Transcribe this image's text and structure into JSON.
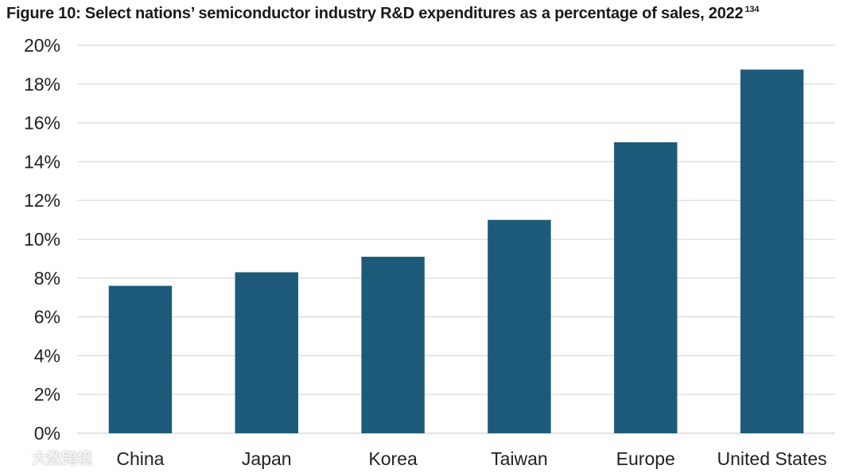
{
  "title": {
    "text": "Figure 10: Select nations’ semiconductor industry R&D expenditures as a percentage of sales, 2022",
    "footnote": "134"
  },
  "watermark": {
    "text": "大数跨境"
  },
  "chart_data": {
    "type": "bar",
    "title": "Figure 10: Select nations’ semiconductor industry R&D expenditures as a percentage of sales, 2022",
    "categories": [
      "China",
      "Japan",
      "Korea",
      "Taiwan",
      "Europe",
      "United States"
    ],
    "values": [
      7.6,
      8.3,
      9.1,
      11.0,
      15.0,
      18.75
    ],
    "y_unit": "%",
    "ylim": [
      0,
      20
    ],
    "y_ticks": [
      0,
      2,
      4,
      6,
      8,
      10,
      12,
      14,
      16,
      18,
      20
    ],
    "y_tick_labels": [
      "0%",
      "2%",
      "4%",
      "6%",
      "8%",
      "10%",
      "12%",
      "14%",
      "16%",
      "18%",
      "20%"
    ],
    "xlabel": "",
    "ylabel": "",
    "grid": true,
    "legend": "none",
    "bar_color": "#1d5a7a",
    "grid_color": "#d9d9d9"
  }
}
